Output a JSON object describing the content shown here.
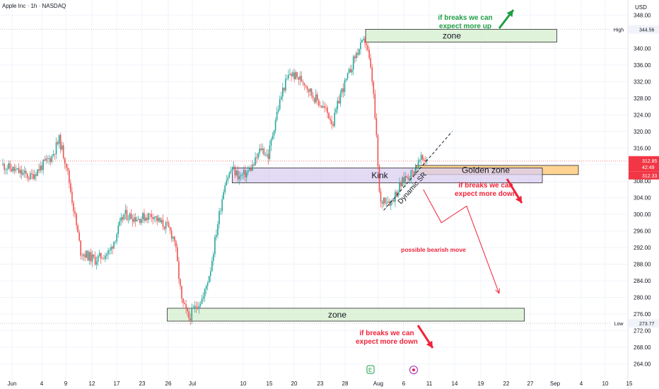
{
  "chart_data": {
    "type": "candlestick",
    "title": "Apple Inc · 1h · NASDAQ",
    "currency": "USD",
    "ylim": [
      262,
      350
    ],
    "y_ticks": [
      264.0,
      268.0,
      272.0,
      276.0,
      280.0,
      284.0,
      288.0,
      292.0,
      296.0,
      300.0,
      304.0,
      308.0,
      312.0,
      316.0,
      320.0,
      324.0,
      328.0,
      332.0,
      336.0,
      340.0,
      348.0
    ],
    "x_ticks": [
      "Jun",
      "4",
      "9",
      "12",
      "17",
      "23",
      "26",
      "Jul",
      "10",
      "15",
      "20",
      "23",
      "28",
      "Aug",
      "6",
      "11",
      "14",
      "19",
      "22",
      "27",
      "Sep",
      "4",
      "10",
      "15"
    ],
    "levels": {
      "high": {
        "label": "High",
        "value": "344.56"
      },
      "low": {
        "label": "Low",
        "value": "273.77"
      },
      "last_price": {
        "value": "312.85",
        "countdown": "42:49"
      },
      "prev_price": {
        "value": "312.33"
      }
    },
    "price_path": [
      [
        0,
        312
      ],
      [
        4,
        309
      ],
      [
        7,
        314
      ],
      [
        8,
        318
      ],
      [
        9,
        312
      ],
      [
        11,
        291
      ],
      [
        13,
        289
      ],
      [
        15,
        291
      ],
      [
        17,
        300
      ],
      [
        19,
        299
      ],
      [
        21,
        300
      ],
      [
        22,
        298
      ],
      [
        23,
        297
      ],
      [
        24,
        294
      ],
      [
        25,
        279
      ],
      [
        26,
        275
      ],
      [
        27,
        278
      ],
      [
        28,
        280
      ],
      [
        29,
        287
      ],
      [
        30,
        298
      ],
      [
        31,
        308
      ],
      [
        32,
        311
      ],
      [
        33,
        309
      ],
      [
        34,
        310
      ],
      [
        35,
        312
      ],
      [
        36,
        316
      ],
      [
        37,
        314
      ],
      [
        38,
        323
      ],
      [
        39,
        330
      ],
      [
        40,
        334
      ],
      [
        41,
        333
      ],
      [
        42,
        332
      ],
      [
        43,
        329
      ],
      [
        44,
        327
      ],
      [
        45,
        325
      ],
      [
        46,
        322
      ],
      [
        47,
        329
      ],
      [
        48,
        333
      ],
      [
        49,
        338
      ],
      [
        50,
        341
      ],
      [
        50.5,
        342
      ],
      [
        51,
        337
      ],
      [
        51.5,
        331
      ],
      [
        52,
        318
      ],
      [
        52.5,
        302
      ],
      [
        53,
        304
      ],
      [
        54,
        303
      ],
      [
        55,
        306
      ],
      [
        56,
        309
      ],
      [
        57,
        310
      ],
      [
        58,
        313
      ],
      [
        59,
        313.5
      ]
    ],
    "zones": [
      {
        "label": "zone",
        "price_high": 344.6,
        "price_low": 341.5,
        "x_start": 50.5,
        "x_end": 77
      },
      {
        "label": "Golden zone",
        "price_high": 311.8,
        "price_low": 309.6,
        "x_start": 57.5,
        "x_end": 80
      },
      {
        "label": "Kink",
        "price_high": 311.2,
        "price_low": 307.6,
        "x_start": 32,
        "x_end": 75
      },
      {
        "label": "zone",
        "price_high": 277.4,
        "price_low": 274.3,
        "x_start": 23,
        "x_end": 72.5
      }
    ],
    "dynamic_sr": {
      "label": "Dynamic SR",
      "from": [
        53,
        301
      ],
      "to": [
        62.5,
        320
      ]
    },
    "annotations": [
      {
        "lines": [
          "if breaks we can",
          "expect more up"
        ],
        "color": "green"
      },
      {
        "lines": [
          "if breaks we can",
          "expect more down"
        ],
        "color": "red",
        "where": "below golden zone"
      },
      {
        "lines": [
          "possible bearish move"
        ],
        "color": "red"
      },
      {
        "lines": [
          "if breaks we can",
          "expect more down"
        ],
        "color": "red",
        "where": "below lower zone"
      }
    ],
    "projection": [
      [
        58.5,
        306
      ],
      [
        61,
        298
      ],
      [
        64.5,
        302
      ],
      [
        69,
        281
      ]
    ],
    "colors": {
      "up": "#26a69a",
      "down": "#ef5350",
      "zone_green": "#d9f0d3",
      "golden": "#ffcc80",
      "kink": "#d9cdf0",
      "ann_green": "#1e9e45",
      "ann_red": "#f0233a"
    },
    "grid": true
  }
}
